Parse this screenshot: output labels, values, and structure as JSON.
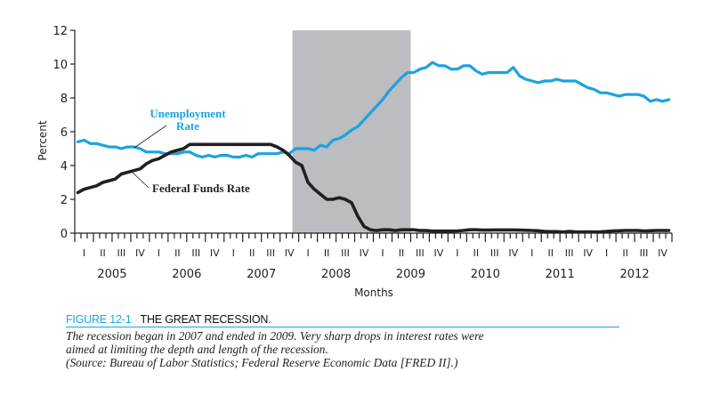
{
  "colors": {
    "unemployment": "#1aa3e0",
    "fed_funds": "#231f20",
    "recession": "#bcbdc0",
    "figure_accent": "#1aa3e0"
  },
  "chart_data": {
    "type": "line",
    "xlabel": "Months",
    "ylabel": "Percent",
    "ylim": [
      0,
      12
    ],
    "yticks": [
      "0",
      "2",
      "4",
      "6",
      "8",
      "10",
      "12"
    ],
    "years": [
      "2005",
      "2006",
      "2007",
      "2008",
      "2009",
      "2010",
      "2011",
      "2012"
    ],
    "quarters": [
      "I",
      "II",
      "III",
      "IV"
    ],
    "x_start": "2005-01",
    "x_end": "2012-12",
    "grid": false,
    "recession_shading": {
      "start": "2007-12",
      "end": "2009-06"
    },
    "series": [
      {
        "name": "Unemployment Rate",
        "color": "#1aa3e0",
        "values": [
          5.4,
          5.5,
          5.3,
          5.3,
          5.2,
          5.1,
          5.1,
          5.0,
          5.1,
          5.1,
          5.0,
          4.8,
          4.8,
          4.8,
          4.7,
          4.7,
          4.7,
          4.8,
          4.8,
          4.6,
          4.5,
          4.6,
          4.5,
          4.6,
          4.6,
          4.5,
          4.5,
          4.6,
          4.5,
          4.7,
          4.7,
          4.7,
          4.7,
          4.8,
          4.7,
          5.0,
          5.0,
          5.0,
          4.9,
          5.2,
          5.1,
          5.5,
          5.6,
          5.8,
          6.1,
          6.3,
          6.7,
          7.1,
          7.5,
          7.9,
          8.4,
          8.8,
          9.2,
          9.5,
          9.5,
          9.7,
          9.8,
          10.1,
          9.9,
          9.9,
          9.7,
          9.7,
          9.9,
          9.9,
          9.6,
          9.4,
          9.5,
          9.5,
          9.5,
          9.5,
          9.8,
          9.3,
          9.1,
          9.0,
          8.9,
          9.0,
          9.0,
          9.1,
          9.0,
          9.0,
          9.0,
          8.8,
          8.6,
          8.5,
          8.3,
          8.3,
          8.2,
          8.1,
          8.2,
          8.2,
          8.2,
          8.1,
          7.8,
          7.9,
          7.8,
          7.9
        ]
      },
      {
        "name": "Federal Funds Rate",
        "color": "#231f20",
        "values": [
          2.4,
          2.6,
          2.7,
          2.8,
          3.0,
          3.1,
          3.2,
          3.5,
          3.6,
          3.7,
          3.8,
          4.1,
          4.3,
          4.4,
          4.6,
          4.8,
          4.9,
          5.0,
          5.25,
          5.25,
          5.25,
          5.25,
          5.25,
          5.25,
          5.25,
          5.25,
          5.25,
          5.25,
          5.25,
          5.25,
          5.25,
          5.25,
          5.1,
          4.9,
          4.6,
          4.2,
          4.0,
          3.0,
          2.6,
          2.3,
          2.0,
          2.0,
          2.1,
          2.0,
          1.8,
          1.0,
          0.4,
          0.2,
          0.15,
          0.2,
          0.2,
          0.15,
          0.2,
          0.2,
          0.2,
          0.15,
          0.15,
          0.12,
          0.12,
          0.12,
          0.12,
          0.13,
          0.16,
          0.2,
          0.2,
          0.18,
          0.18,
          0.19,
          0.19,
          0.19,
          0.19,
          0.18,
          0.17,
          0.16,
          0.14,
          0.1,
          0.09,
          0.09,
          0.07,
          0.1,
          0.08,
          0.07,
          0.08,
          0.07,
          0.08,
          0.1,
          0.13,
          0.14,
          0.16,
          0.16,
          0.16,
          0.13,
          0.14,
          0.16,
          0.16,
          0.16
        ]
      }
    ],
    "annotations": {
      "unemployment_line1": "Unemployment",
      "unemployment_line2": "Rate",
      "fed_funds": "Federal Funds Rate"
    }
  },
  "caption": {
    "figure_number": "FIGURE 12-1",
    "figure_title": "THE GREAT RECESSION.",
    "lines": [
      "The recession began in 2007 and ended in 2009. Very sharp drops in interest rates were",
      "aimed at limiting the depth and length of the recession.",
      "(Source: Bureau of Labor Statistics; Federal Reserve Economic Data [FRED II].)"
    ]
  }
}
